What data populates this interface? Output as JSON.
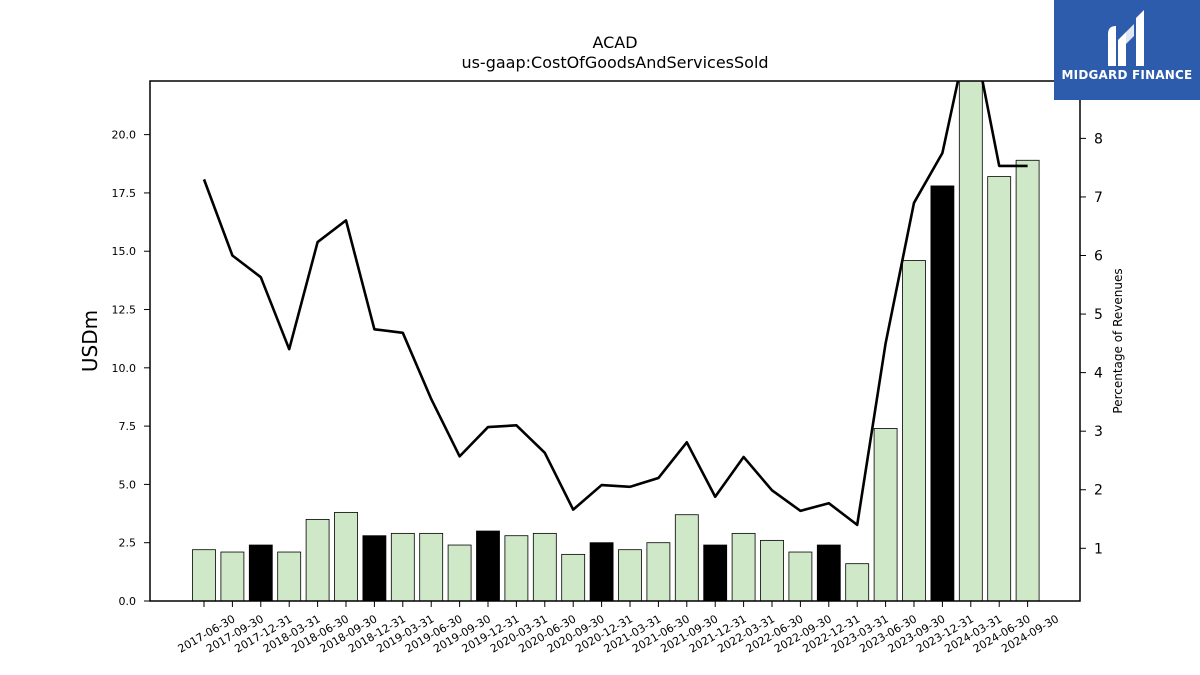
{
  "chart_data": {
    "type": "bar+line",
    "title": "ACAD",
    "subtitle": "us-gaap:CostOfGoodsAndServicesSold",
    "ylabel": "USDm",
    "y2label": "Percentage of Revenues",
    "ylim": [
      0,
      22.3
    ],
    "y2lim": [
      0.1,
      8.98
    ],
    "yticks": [
      "0.0",
      "2.5",
      "5.0",
      "7.5",
      "10.0",
      "12.5",
      "15.0",
      "17.5",
      "20.0"
    ],
    "y2ticks": [
      "1",
      "2",
      "3",
      "4",
      "5",
      "6",
      "7",
      "8"
    ],
    "categories": [
      "2017-06-30",
      "2017-09-30",
      "2017-12-31",
      "2018-03-31",
      "2018-06-30",
      "2018-09-30",
      "2018-12-31",
      "2019-03-31",
      "2019-06-30",
      "2019-09-30",
      "2019-12-31",
      "2020-03-31",
      "2020-06-30",
      "2020-09-30",
      "2020-12-31",
      "2021-03-31",
      "2021-06-30",
      "2021-09-30",
      "2021-12-31",
      "2022-03-31",
      "2022-06-30",
      "2022-09-30",
      "2022-12-31",
      "2023-03-31",
      "2023-06-30",
      "2023-09-30",
      "2023-12-31",
      "2024-03-31",
      "2024-06-30",
      "2024-09-30"
    ],
    "series": [
      {
        "kind": "bar",
        "values": [
          2.2,
          2.1,
          2.4,
          2.1,
          3.5,
          3.8,
          2.8,
          2.9,
          2.9,
          2.4,
          3.0,
          2.8,
          2.9,
          2.0,
          2.5,
          2.2,
          2.5,
          3.7,
          2.4,
          2.9,
          2.6,
          2.1,
          2.4,
          1.6,
          7.4,
          14.6,
          17.8,
          22.6,
          18.2,
          18.9
        ],
        "highlight": [
          false,
          false,
          true,
          false,
          false,
          false,
          true,
          false,
          false,
          false,
          true,
          false,
          false,
          false,
          true,
          false,
          false,
          false,
          true,
          false,
          false,
          false,
          true,
          false,
          false,
          false,
          true,
          false,
          false,
          false
        ]
      },
      {
        "kind": "line",
        "axis": "right",
        "values": [
          7.3,
          6.0,
          5.63,
          4.4,
          6.23,
          6.6,
          4.74,
          4.68,
          3.55,
          2.57,
          3.07,
          3.1,
          2.63,
          1.66,
          2.08,
          2.05,
          2.2,
          2.81,
          1.88,
          2.56,
          1.99,
          1.64,
          1.77,
          1.4,
          4.5,
          6.9,
          7.75,
          10.0,
          7.53,
          7.53
        ]
      }
    ],
    "colors": {
      "bar": "#cfe9c8",
      "bar_highlight": "#000000",
      "line": "#000000",
      "axis": "#000000"
    }
  },
  "logo": {
    "text": "MIDGARD FINANCE",
    "background": "#2c5cab"
  }
}
